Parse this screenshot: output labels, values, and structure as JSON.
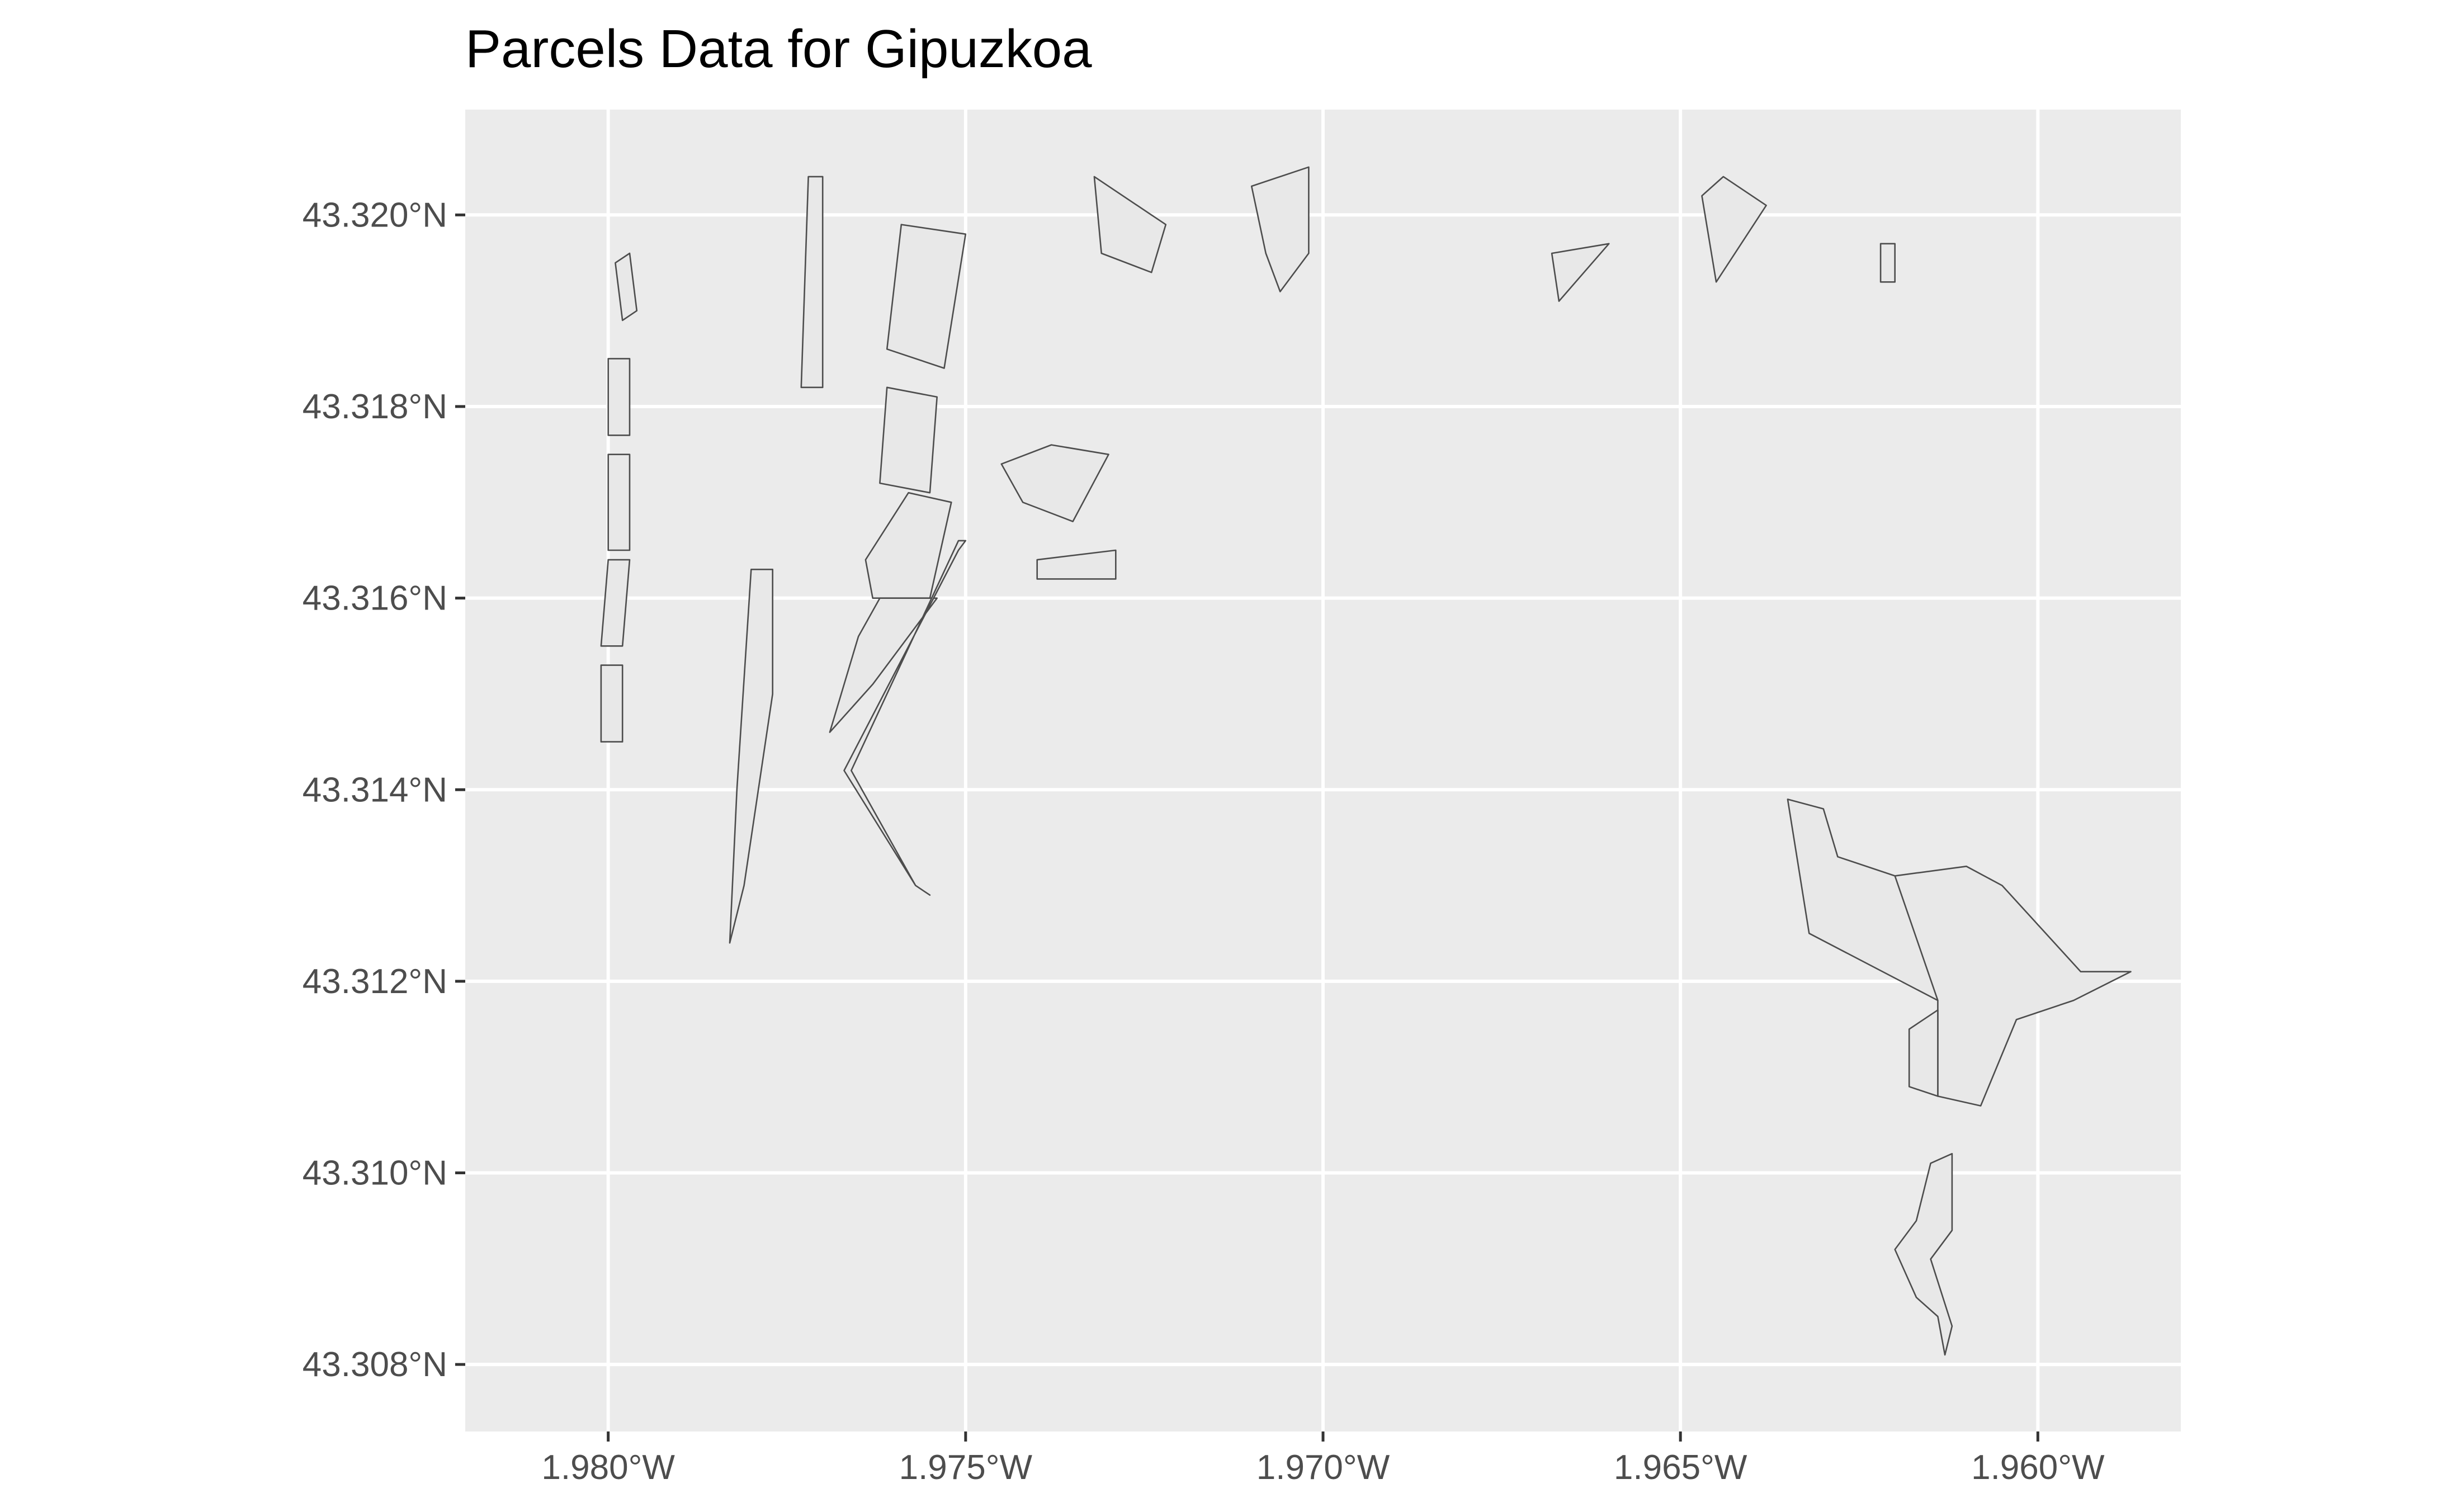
{
  "title": "Parcels Data for Gipuzkoa",
  "colors": {
    "panel_background": "#ebebeb",
    "grid": "#ffffff",
    "parcel_fill": "#e8e8e8",
    "parcel_stroke": "#4d4d4d",
    "tick_label": "#4d4d4d"
  },
  "axes": {
    "x_ticks": [
      "1.980°W",
      "1.975°W",
      "1.970°W",
      "1.965°W",
      "1.960°W"
    ],
    "y_ticks": [
      "43.320°N",
      "43.318°N",
      "43.316°N",
      "43.314°N",
      "43.312°N",
      "43.310°N",
      "43.308°N"
    ],
    "lon_range": [
      -1.982,
      -1.958
    ],
    "lat_range": [
      43.3073,
      43.3211
    ]
  },
  "chart_data": {
    "type": "map",
    "title": "Parcels Data for Gipuzkoa",
    "xlabel": "",
    "ylabel": "",
    "x_ticks": [
      -1.98,
      -1.975,
      -1.97,
      -1.965,
      -1.96
    ],
    "y_ticks": [
      43.32,
      43.318,
      43.316,
      43.314,
      43.312,
      43.31,
      43.308
    ],
    "grid": true,
    "legend": "none",
    "parcels": [
      {
        "id": "west-row-1",
        "coords": [
          [
            -1.9799,
            43.3195
          ],
          [
            -1.9797,
            43.3196
          ],
          [
            -1.9796,
            43.319
          ],
          [
            -1.9798,
            43.3189
          ]
        ]
      },
      {
        "id": "west-row-2",
        "coords": [
          [
            -1.98,
            43.3185
          ],
          [
            -1.9797,
            43.3185
          ],
          [
            -1.9797,
            43.3177
          ],
          [
            -1.98,
            43.3177
          ]
        ]
      },
      {
        "id": "west-row-3",
        "coords": [
          [
            -1.98,
            43.3175
          ],
          [
            -1.9797,
            43.3175
          ],
          [
            -1.9797,
            43.3165
          ],
          [
            -1.98,
            43.3165
          ]
        ]
      },
      {
        "id": "west-row-4",
        "coords": [
          [
            -1.98,
            43.3164
          ],
          [
            -1.9797,
            43.3164
          ],
          [
            -1.9798,
            43.3155
          ],
          [
            -1.9801,
            43.3155
          ]
        ]
      },
      {
        "id": "west-row-5",
        "coords": [
          [
            -1.9801,
            43.3153
          ],
          [
            -1.9798,
            43.3153
          ],
          [
            -1.9798,
            43.3145
          ],
          [
            -1.9801,
            43.3145
          ]
        ]
      },
      {
        "id": "quay-strip",
        "coords": [
          [
            -1.978,
            43.3163
          ],
          [
            -1.9777,
            43.3163
          ],
          [
            -1.9777,
            43.315
          ],
          [
            -1.9781,
            43.313
          ],
          [
            -1.9783,
            43.3124
          ],
          [
            -1.9782,
            43.314
          ]
        ]
      },
      {
        "id": "long-block",
        "coords": [
          [
            -1.9772,
            43.3204
          ],
          [
            -1.977,
            43.3204
          ],
          [
            -1.977,
            43.3182
          ],
          [
            -1.9773,
            43.3182
          ]
        ]
      },
      {
        "id": "center-square",
        "coords": [
          [
            -1.9759,
            43.3199
          ],
          [
            -1.975,
            43.3198
          ],
          [
            -1.9753,
            43.3184
          ],
          [
            -1.9761,
            43.3186
          ]
        ]
      },
      {
        "id": "center-block-a",
        "coords": [
          [
            -1.9761,
            43.3182
          ],
          [
            -1.9754,
            43.3181
          ],
          [
            -1.9755,
            43.3171
          ],
          [
            -1.9762,
            43.3172
          ]
        ]
      },
      {
        "id": "center-large",
        "coords": [
          [
            -1.9758,
            43.3171
          ],
          [
            -1.9752,
            43.317
          ],
          [
            -1.9755,
            43.316
          ],
          [
            -1.9763,
            43.316
          ],
          [
            -1.9764,
            43.3164
          ]
        ]
      },
      {
        "id": "triangle-block",
        "coords": [
          [
            -1.9762,
            43.316
          ],
          [
            -1.9754,
            43.316
          ],
          [
            -1.9763,
            43.3151
          ],
          [
            -1.9769,
            43.3146
          ],
          [
            -1.9765,
            43.3156
          ]
        ]
      },
      {
        "id": "pier-line",
        "coords": [
          [
            -1.975,
            43.3166
          ],
          [
            -1.9751,
            43.3165
          ],
          [
            -1.9767,
            43.3142
          ],
          [
            -1.9757,
            43.313
          ],
          [
            -1.9755,
            43.3129
          ],
          [
            -1.9757,
            43.313
          ],
          [
            -1.9766,
            43.3142
          ],
          [
            -1.9751,
            43.3166
          ]
        ]
      },
      {
        "id": "east-curve-block",
        "coords": [
          [
            -1.9742,
            43.317
          ],
          [
            -1.9735,
            43.3168
          ],
          [
            -1.973,
            43.3175
          ],
          [
            -1.9738,
            43.3176
          ],
          [
            -1.9745,
            43.3174
          ]
        ]
      },
      {
        "id": "east-terrace",
        "coords": [
          [
            -1.974,
            43.3164
          ],
          [
            -1.9729,
            43.3165
          ],
          [
            -1.9729,
            43.3162
          ],
          [
            -1.974,
            43.3162
          ]
        ]
      },
      {
        "id": "north-coast-1",
        "coords": [
          [
            -1.9732,
            43.3204
          ],
          [
            -1.9722,
            43.3199
          ],
          [
            -1.9724,
            43.3194
          ],
          [
            -1.9731,
            43.3196
          ]
        ]
      },
      {
        "id": "north-coast-2",
        "coords": [
          [
            -1.971,
            43.3203
          ],
          [
            -1.9702,
            43.3205
          ],
          [
            -1.9702,
            43.3196
          ],
          [
            -1.9706,
            43.3192
          ],
          [
            -1.9708,
            43.3196
          ]
        ]
      },
      {
        "id": "north-coast-3",
        "coords": [
          [
            -1.9668,
            43.3196
          ],
          [
            -1.966,
            43.3197
          ],
          [
            -1.9667,
            43.3191
          ]
        ]
      },
      {
        "id": "north-coast-4",
        "coords": [
          [
            -1.9647,
            43.3202
          ],
          [
            -1.9644,
            43.3204
          ],
          [
            -1.9638,
            43.3201
          ],
          [
            -1.9645,
            43.3193
          ]
        ]
      },
      {
        "id": "north-coast-5",
        "coords": [
          [
            -1.9622,
            43.3197
          ],
          [
            -1.962,
            43.3197
          ],
          [
            -1.962,
            43.3193
          ],
          [
            -1.9622,
            43.3193
          ]
        ]
      },
      {
        "id": "se-large-west",
        "coords": [
          [
            -1.9635,
            43.3139
          ],
          [
            -1.963,
            43.3138
          ],
          [
            -1.9628,
            43.3133
          ],
          [
            -1.962,
            43.3131
          ],
          [
            -1.9613,
            43.3124
          ],
          [
            -1.9614,
            43.3118
          ],
          [
            -1.9632,
            43.3125
          ]
        ]
      },
      {
        "id": "se-large-east",
        "coords": [
          [
            -1.962,
            43.3131
          ],
          [
            -1.961,
            43.3132
          ],
          [
            -1.9605,
            43.313
          ],
          [
            -1.9594,
            43.3121
          ],
          [
            -1.9587,
            43.3121
          ],
          [
            -1.9595,
            43.3118
          ],
          [
            -1.9603,
            43.3116
          ],
          [
            -1.9608,
            43.3107
          ],
          [
            -1.9614,
            43.3108
          ],
          [
            -1.9614,
            43.3118
          ]
        ]
      },
      {
        "id": "se-small-south",
        "coords": [
          [
            -1.9614,
            43.3117
          ],
          [
            -1.9614,
            43.3108
          ],
          [
            -1.9618,
            43.3109
          ],
          [
            -1.9618,
            43.3115
          ]
        ]
      },
      {
        "id": "south-strip",
        "coords": [
          [
            -1.9612,
            43.3102
          ],
          [
            -1.9615,
            43.3101
          ],
          [
            -1.9617,
            43.3095
          ],
          [
            -1.962,
            43.3092
          ],
          [
            -1.9617,
            43.3087
          ],
          [
            -1.9614,
            43.3085
          ],
          [
            -1.9613,
            43.3081
          ],
          [
            -1.9612,
            43.3084
          ],
          [
            -1.9615,
            43.3091
          ],
          [
            -1.9612,
            43.3094
          ]
        ]
      }
    ]
  }
}
